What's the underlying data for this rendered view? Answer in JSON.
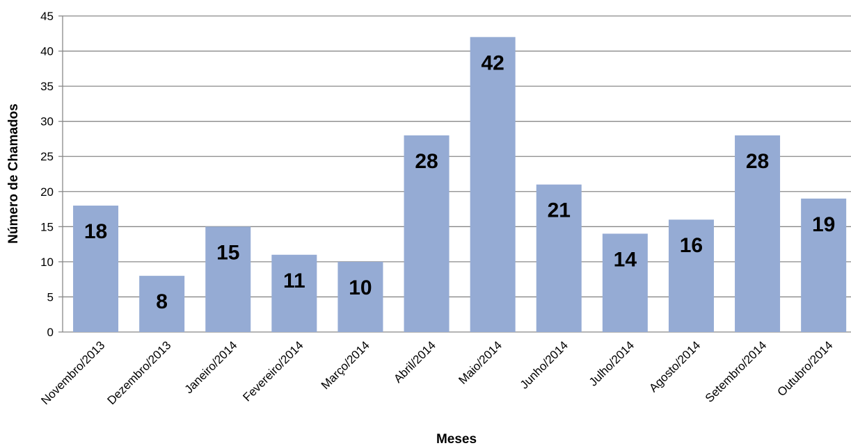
{
  "chart_data": {
    "type": "bar",
    "title": "",
    "xlabel": "Meses",
    "ylabel": "Número de Chamados",
    "categories": [
      "Novembro/2013",
      "Dezembro/2013",
      "Janeiro/2014",
      "Fevereiro/2014",
      "Março/2014",
      "Abril/2014",
      "Maio/2014",
      "Junho/2014",
      "Julho/2014",
      "Agosto/2014",
      "Setembro/2014",
      "Outubro/2014"
    ],
    "values": [
      18,
      8,
      15,
      11,
      10,
      28,
      42,
      21,
      14,
      16,
      28,
      19
    ],
    "ylim": [
      0,
      45
    ],
    "yticks": [
      0,
      5,
      10,
      15,
      20,
      25,
      30,
      35,
      40,
      45
    ],
    "grid": true,
    "legend": "none",
    "bar_color": "#95abd4",
    "grid_color": "#888888"
  }
}
